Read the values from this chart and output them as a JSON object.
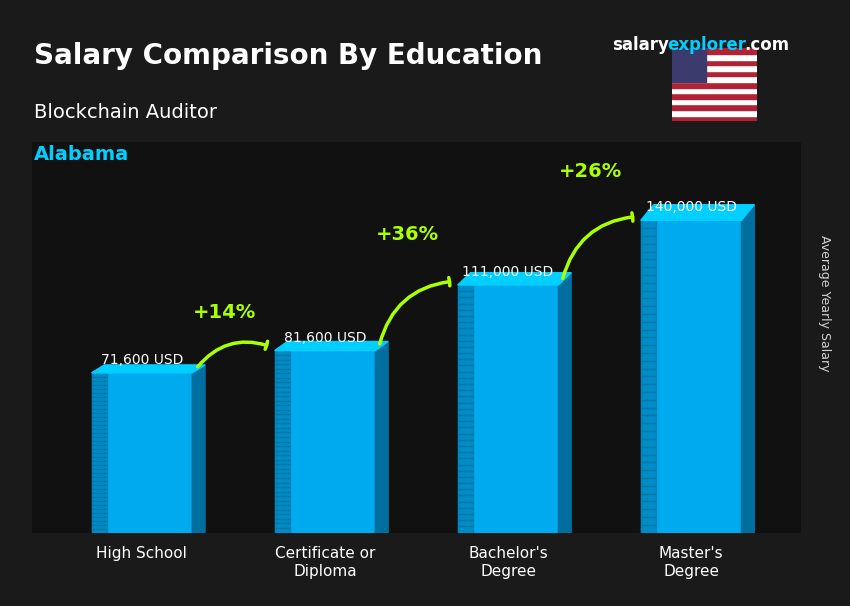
{
  "title_line1": "Salary Comparison By Education",
  "subtitle": "Blockchain Auditor",
  "location": "Alabama",
  "ylabel": "Average Yearly Salary",
  "watermark": "salaryexplorer.com",
  "categories": [
    "High School",
    "Certificate or\nDiploma",
    "Bachelor's\nDegree",
    "Master's\nDegree"
  ],
  "values": [
    71600,
    81600,
    111000,
    140000
  ],
  "value_labels": [
    "71,600 USD",
    "81,600 USD",
    "111,000 USD",
    "140,000 USD"
  ],
  "pct_changes": [
    "+14%",
    "+36%",
    "+26%"
  ],
  "bar_color_top": "#00cfff",
  "bar_color_mid": "#00aaee",
  "bar_color_side": "#006fa0",
  "bar_color_bottom": "#004a70",
  "arrow_color": "#aaff00",
  "title_color": "#ffffff",
  "subtitle_color": "#ffffff",
  "location_color": "#00cfff",
  "value_label_color": "#ffffff",
  "pct_color": "#aaff00",
  "watermark_color_salary": "#ffffff",
  "watermark_color_explorer": "#00cfff",
  "background_color": "#1a1a2e",
  "ylim": [
    0,
    175000
  ]
}
